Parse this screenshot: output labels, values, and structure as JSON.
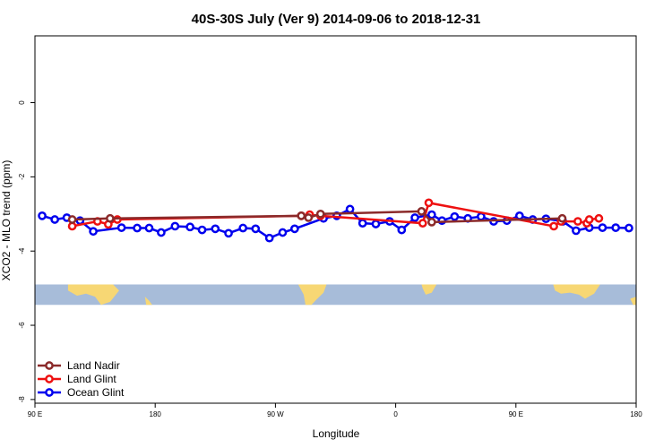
{
  "chart_data": {
    "type": "line",
    "title": "40S-30S July (Ver 9)   2014-09-06 to 2018-12-31",
    "xlabel": "Longitude",
    "ylabel": "XCO2 - MLO trend (ppm)",
    "xlim": [
      0,
      1
    ],
    "ylim": [
      -8.1,
      1.8
    ],
    "x_ticks": [
      {
        "label": "90 E",
        "pos": 0.0
      },
      {
        "label": "180",
        "pos": 0.2
      },
      {
        "label": "90 W",
        "pos": 0.4
      },
      {
        "label": "0",
        "pos": 0.6
      },
      {
        "label": "90 E",
        "pos": 0.8
      },
      {
        "label": "180",
        "pos": 1.0
      }
    ],
    "y_ticks": [
      0,
      -2,
      -4,
      -6,
      -8
    ],
    "grid": false,
    "legend_position": "bottom-left",
    "map_band": {
      "y_top": -4.9,
      "y_bottom": -5.45,
      "water_color": "#a7bcd9",
      "land_color": "#f7d774"
    },
    "series": [
      {
        "name": "Land Nadir",
        "color": "#8b2a2a",
        "points": [
          [
            0.062,
            -3.15
          ],
          [
            0.125,
            -3.12
          ],
          [
            0.443,
            -3.05
          ],
          [
            0.455,
            -3.1
          ],
          [
            0.475,
            -3.0
          ],
          [
            0.643,
            -2.93
          ],
          [
            0.66,
            -3.22
          ],
          [
            0.877,
            -3.12
          ]
        ]
      },
      {
        "name": "Land Glint",
        "color": "#ee1111",
        "points": [
          [
            0.062,
            -3.33
          ],
          [
            0.104,
            -3.2
          ],
          [
            0.122,
            -3.28
          ],
          [
            0.137,
            -3.15
          ],
          [
            0.443,
            -3.05
          ],
          [
            0.457,
            -3.02
          ],
          [
            0.475,
            -3.05
          ],
          [
            0.645,
            -3.25
          ],
          [
            0.655,
            -2.7
          ],
          [
            0.863,
            -3.33
          ],
          [
            0.875,
            -3.2
          ],
          [
            0.903,
            -3.2
          ],
          [
            0.918,
            -3.25
          ],
          [
            0.922,
            -3.15
          ],
          [
            0.938,
            -3.12
          ]
        ]
      },
      {
        "name": "Ocean Glint",
        "color": "#0000ee",
        "points": [
          [
            0.012,
            -3.05
          ],
          [
            0.033,
            -3.15
          ],
          [
            0.053,
            -3.1
          ],
          [
            0.075,
            -3.18
          ],
          [
            0.097,
            -3.47
          ],
          [
            0.144,
            -3.37
          ],
          [
            0.17,
            -3.38
          ],
          [
            0.19,
            -3.38
          ],
          [
            0.21,
            -3.5
          ],
          [
            0.233,
            -3.33
          ],
          [
            0.258,
            -3.35
          ],
          [
            0.278,
            -3.43
          ],
          [
            0.3,
            -3.4
          ],
          [
            0.322,
            -3.52
          ],
          [
            0.346,
            -3.38
          ],
          [
            0.367,
            -3.4
          ],
          [
            0.39,
            -3.65
          ],
          [
            0.412,
            -3.5
          ],
          [
            0.432,
            -3.4
          ],
          [
            0.48,
            -3.12
          ],
          [
            0.502,
            -3.05
          ],
          [
            0.524,
            -2.87
          ],
          [
            0.545,
            -3.25
          ],
          [
            0.567,
            -3.27
          ],
          [
            0.59,
            -3.2
          ],
          [
            0.61,
            -3.43
          ],
          [
            0.632,
            -3.1
          ],
          [
            0.66,
            -3.02
          ],
          [
            0.677,
            -3.18
          ],
          [
            0.698,
            -3.07
          ],
          [
            0.72,
            -3.12
          ],
          [
            0.742,
            -3.07
          ],
          [
            0.763,
            -3.2
          ],
          [
            0.785,
            -3.18
          ],
          [
            0.806,
            -3.05
          ],
          [
            0.828,
            -3.15
          ],
          [
            0.85,
            -3.13
          ],
          [
            0.878,
            -3.2
          ],
          [
            0.9,
            -3.45
          ],
          [
            0.922,
            -3.37
          ],
          [
            0.944,
            -3.37
          ],
          [
            0.966,
            -3.37
          ],
          [
            0.988,
            -3.38
          ]
        ]
      }
    ]
  }
}
